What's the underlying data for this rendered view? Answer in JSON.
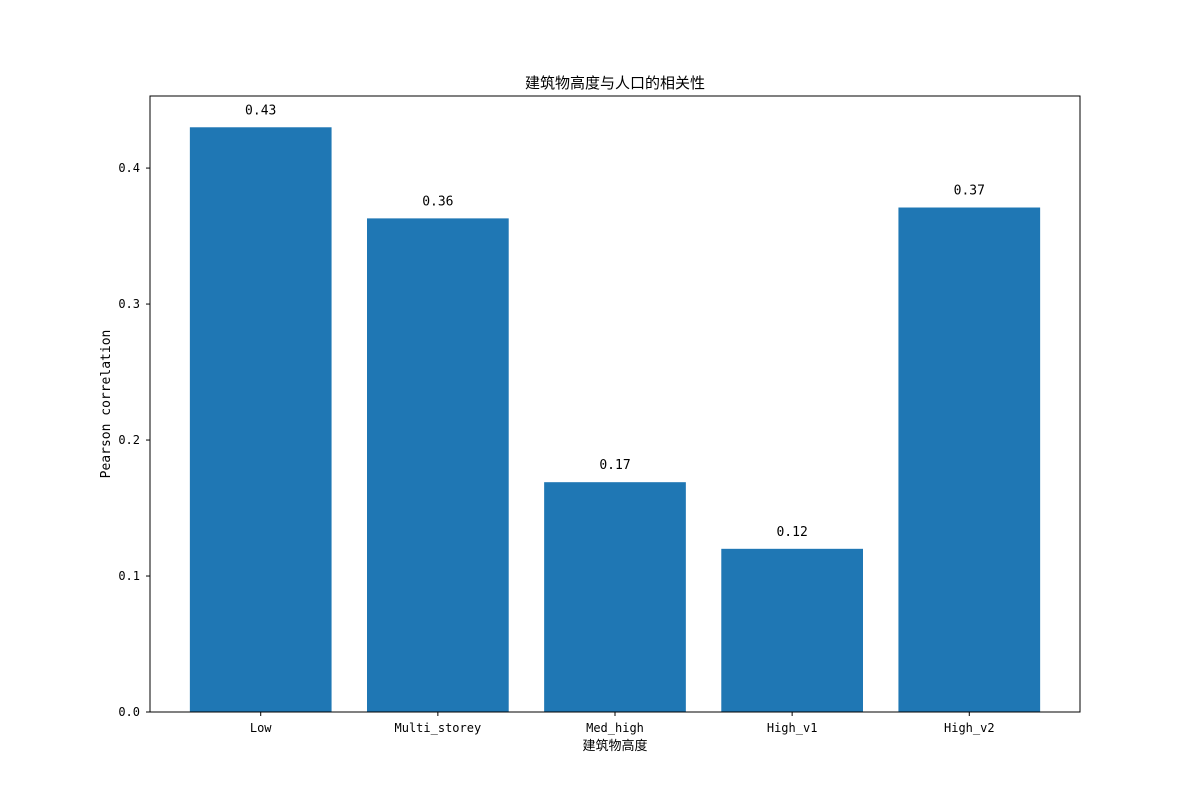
{
  "chart_data": {
    "type": "bar",
    "title": "建筑物高度与人口的相关性",
    "xlabel": "建筑物高度",
    "ylabel": "Pearson correlation",
    "categories": [
      "Low",
      "Multi_storey",
      "Med_high",
      "High_v1",
      "High_v2"
    ],
    "values": [
      0.43,
      0.363,
      0.169,
      0.12,
      0.371
    ],
    "data_labels": [
      "0.43",
      "0.36",
      "0.17",
      "0.12",
      "0.37"
    ],
    "ylim": [
      0,
      0.453
    ],
    "yticks": [
      0.0,
      0.1,
      0.2,
      0.3,
      0.4
    ],
    "ytick_labels": [
      "0.0",
      "0.1",
      "0.2",
      "0.3",
      "0.4"
    ],
    "grid": false,
    "colors": {
      "bar": "#1f77b4",
      "axes": "#000000",
      "background": "#ffffff"
    }
  }
}
